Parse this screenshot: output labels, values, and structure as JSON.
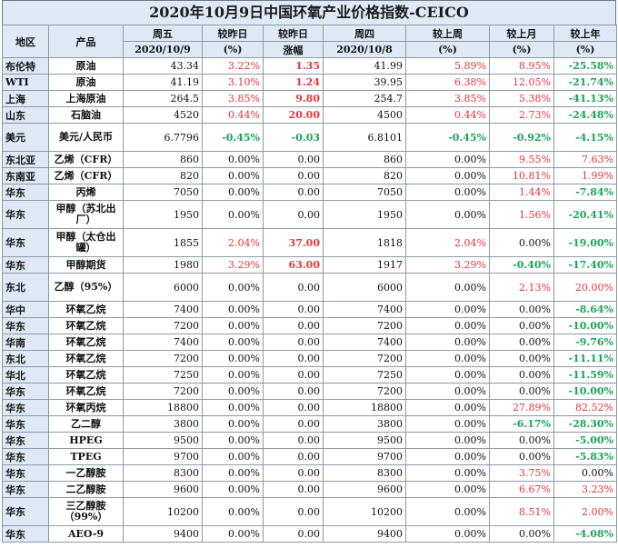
{
  "title": "2020年10月9日中国环氧产业价格指数-CEICO",
  "header": {
    "region": "地区",
    "product": "产品",
    "fri": "周五",
    "fri_date": "2020/10/9",
    "chg_prev": "较昨日",
    "chg_prev_unit": "(%)",
    "chg_prev2": "较昨日",
    "chg_prev2_unit": "涨幅",
    "thu": "周四",
    "thu_date": "2020/10/8",
    "chg_week": "较上周",
    "chg_week_unit": "(%)",
    "chg_month": "较上月",
    "chg_month_unit": "(%)",
    "chg_year": "较上年",
    "chg_year_unit": "(%)"
  },
  "rows": [
    {
      "region": "布伦特",
      "product": "原油",
      "fri": "43.34",
      "pct": "3.22%",
      "amt": "1.35",
      "thu": "41.99",
      "week": "5.89%",
      "month": "8.95%",
      "year": "-25.58%"
    },
    {
      "region": "WTI",
      "product": "原油",
      "fri": "41.19",
      "pct": "3.10%",
      "amt": "1.24",
      "thu": "39.95",
      "week": "6.38%",
      "month": "12.05%",
      "year": "-21.74%"
    },
    {
      "region": "上海",
      "product": "上海原油",
      "fri": "264.5",
      "pct": "3.85%",
      "amt": "9.80",
      "thu": "254.7",
      "week": "3.85%",
      "month": "5.38%",
      "year": "-41.13%"
    },
    {
      "region": "山东",
      "product": "石脑油",
      "fri": "4520",
      "pct": "0.44%",
      "amt": "20.00",
      "thu": "4500",
      "week": "0.44%",
      "month": "2.73%",
      "year": "-24.48%"
    },
    {
      "region": "美元",
      "product": "美元/人民币",
      "fri": "6.7796",
      "pct": "-0.45%",
      "amt": "-0.03",
      "thu": "6.8101",
      "week": "-0.45%",
      "month": "-0.92%",
      "year": "-4.15%"
    },
    {
      "region": "东北亚",
      "product": "乙烯（CFR）",
      "fri": "860",
      "pct": "0.00%",
      "amt": "0.00",
      "thu": "860",
      "week": "0.00%",
      "month": "9.55%",
      "year": "7.63%"
    },
    {
      "region": "东南亚",
      "product": "乙烯（CFR）",
      "fri": "820",
      "pct": "0.00%",
      "amt": "0.00",
      "thu": "820",
      "week": "0.00%",
      "month": "10.81%",
      "year": "1.99%"
    },
    {
      "region": "华东",
      "product": "丙烯",
      "fri": "7050",
      "pct": "0.00%",
      "amt": "0.00",
      "thu": "7050",
      "week": "0.00%",
      "month": "1.44%",
      "year": "-7.84%"
    },
    {
      "region": "华东",
      "product": "甲醇（苏北出厂）",
      "fri": "1950",
      "pct": "0.00%",
      "amt": "0.00",
      "thu": "1950",
      "week": "0.00%",
      "month": "1.56%",
      "year": "-20.41%"
    },
    {
      "region": "华东",
      "product": "甲醇（太仓出罐）",
      "fri": "1855",
      "pct": "2.04%",
      "amt": "37.00",
      "thu": "1818",
      "week": "2.04%",
      "month": "0.00%",
      "year": "-19.00%"
    },
    {
      "region": "华东",
      "product": "甲醇期货",
      "fri": "1980",
      "pct": "3.29%",
      "amt": "63.00",
      "thu": "1917",
      "week": "3.29%",
      "month": "-0.40%",
      "year": "-17.40%"
    },
    {
      "region": "东北",
      "product": "乙醇（95%）",
      "fri": "6000",
      "pct": "0.00%",
      "amt": "0.00",
      "thu": "6000",
      "week": "0.00%",
      "month": "2.13%",
      "year": "20.00%"
    },
    {
      "region": "华中",
      "product": "环氧乙烷",
      "fri": "7400",
      "pct": "0.00%",
      "amt": "0.00",
      "thu": "7400",
      "week": "0.00%",
      "month": "0.00%",
      "year": "-8.64%"
    },
    {
      "region": "华东",
      "product": "环氧乙烷",
      "fri": "7200",
      "pct": "0.00%",
      "amt": "0.00",
      "thu": "7200",
      "week": "0.00%",
      "month": "0.00%",
      "year": "-10.00%"
    },
    {
      "region": "华南",
      "product": "环氧乙烷",
      "fri": "7400",
      "pct": "0.00%",
      "amt": "0.00",
      "thu": "7400",
      "week": "0.00%",
      "month": "0.00%",
      "year": "-9.76%"
    },
    {
      "region": "东北",
      "product": "环氧乙烷",
      "fri": "7200",
      "pct": "0.00%",
      "amt": "0.00",
      "thu": "7200",
      "week": "0.00%",
      "month": "0.00%",
      "year": "-11.11%"
    },
    {
      "region": "华北",
      "product": "环氧乙烷",
      "fri": "7250",
      "pct": "0.00%",
      "amt": "0.00",
      "thu": "7250",
      "week": "0.00%",
      "month": "0.00%",
      "year": "-11.59%"
    },
    {
      "region": "华东",
      "product": "环氧乙烷",
      "fri": "7200",
      "pct": "0.00%",
      "amt": "0.00",
      "thu": "7200",
      "week": "0.00%",
      "month": "0.00%",
      "year": "-10.00%"
    },
    {
      "region": "华东",
      "product": "环氧丙烷",
      "fri": "18800",
      "pct": "0.00%",
      "amt": "0.00",
      "thu": "18800",
      "week": "0.00%",
      "month": "27.89%",
      "year": "82.52%"
    },
    {
      "region": "华东",
      "product": "乙二醇",
      "fri": "3800",
      "pct": "0.00%",
      "amt": "0.00",
      "thu": "3800",
      "week": "0.00%",
      "month": "-6.17%",
      "year": "-28.30%"
    },
    {
      "region": "华东",
      "product": "HPEG",
      "fri": "9500",
      "pct": "0.00%",
      "amt": "0.00",
      "thu": "9500",
      "week": "0.00%",
      "month": "0.00%",
      "year": "-5.00%"
    },
    {
      "region": "华东",
      "product": "TPEG",
      "fri": "9700",
      "pct": "0.00%",
      "amt": "0.00",
      "thu": "9700",
      "week": "0.00%",
      "month": "0.00%",
      "year": "-5.83%"
    },
    {
      "region": "华东",
      "product": "一乙醇胺",
      "fri": "8300",
      "pct": "0.00%",
      "amt": "0.00",
      "thu": "8300",
      "week": "0.00%",
      "month": "3.75%",
      "year": "0.00%"
    },
    {
      "region": "华东",
      "product": "二乙醇胺",
      "fri": "9600",
      "pct": "0.00%",
      "amt": "0.00",
      "thu": "9600",
      "week": "0.00%",
      "month": "6.67%",
      "year": "3.23%"
    },
    {
      "region": "华东",
      "product": "三乙醇胺（99%）",
      "fri": "10200",
      "pct": "0.00%",
      "amt": "0.00",
      "thu": "10200",
      "week": "0.00%",
      "month": "8.51%",
      "year": "2.00%"
    },
    {
      "region": "华东",
      "product": "AEO-9",
      "fri": "9400",
      "pct": "0.00%",
      "amt": "0.00",
      "thu": "9400",
      "week": "0.00%",
      "month": "0.00%",
      "year": "-4.08%"
    }
  ]
}
